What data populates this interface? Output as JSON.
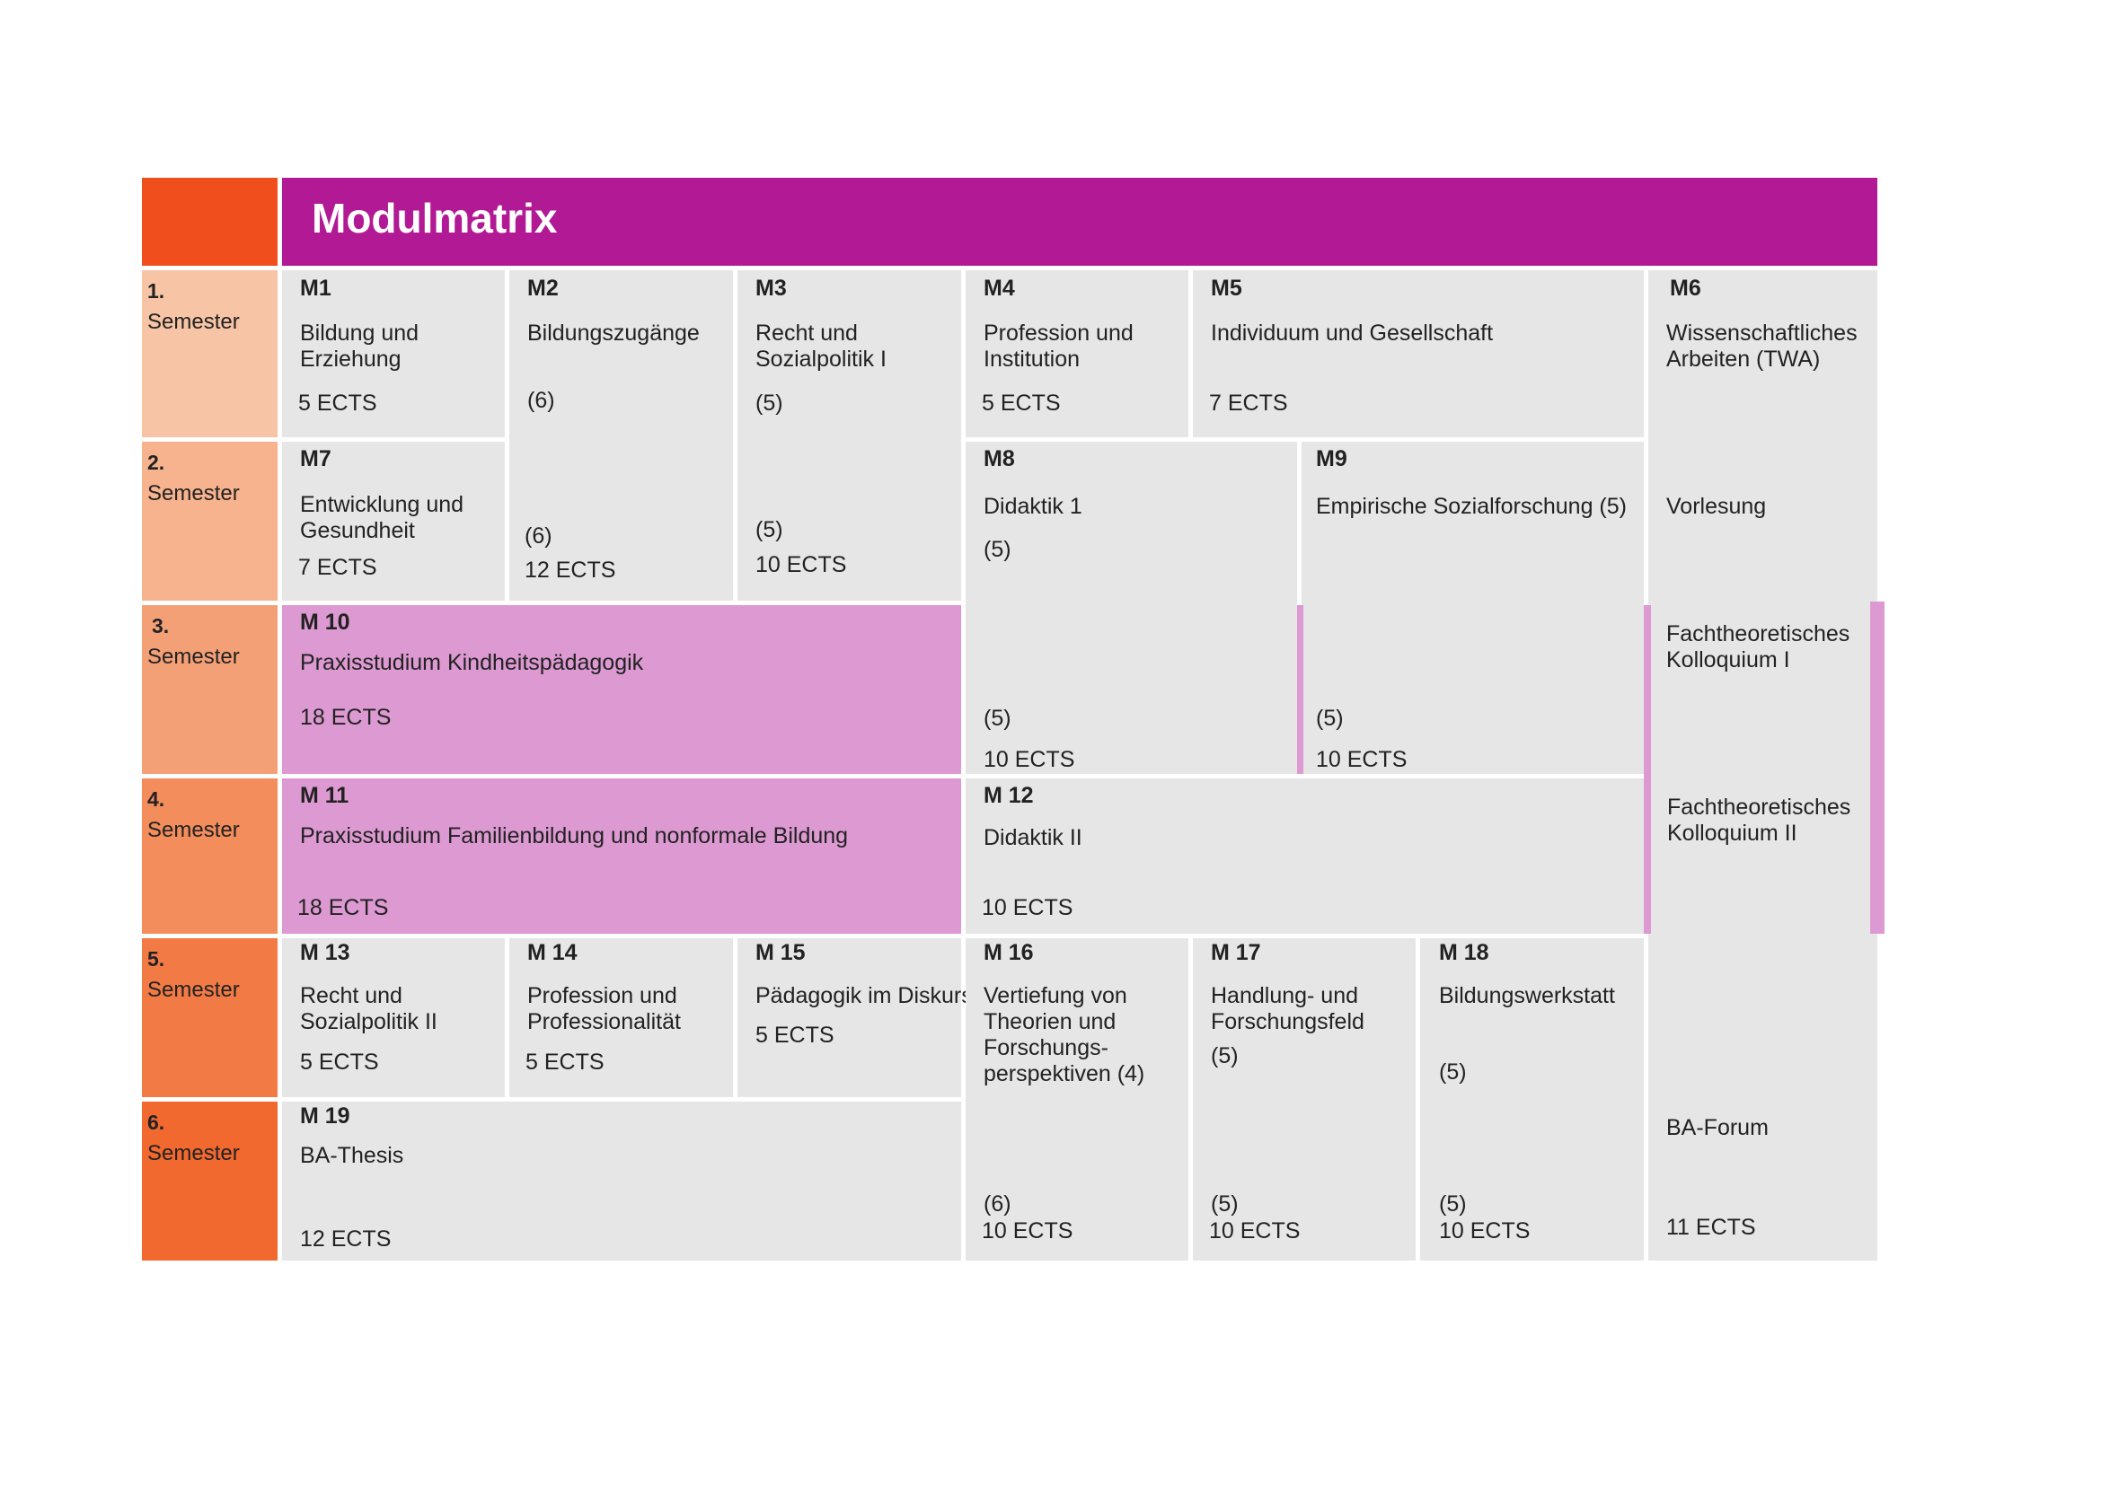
{
  "header": {
    "title": "Modulmatrix"
  },
  "semesters": [
    {
      "number": "1.",
      "label": "Semester",
      "color": "#f7c4a5"
    },
    {
      "number": "2.",
      "label": "Semester",
      "color": "#f6b38e"
    },
    {
      "number": "3.",
      "label": "Semester",
      "color": "#f4a076"
    },
    {
      "number": "4.",
      "label": "Semester",
      "color": "#f38d5c"
    },
    {
      "number": "5.",
      "label": "Semester",
      "color": "#f27a45"
    },
    {
      "number": "6.",
      "label": "Semester",
      "color": "#f1692f"
    }
  ],
  "colors": {
    "header_accent": "#f04e1c",
    "header_bar": "#b21995",
    "module_bg": "#e6e6e6",
    "praxis_bg": "#dd99d1"
  },
  "modules": {
    "m1": {
      "code": "M1",
      "title": "Bildung und\nErziehung",
      "ects": "5 ECTS"
    },
    "m2": {
      "code": "M2",
      "title": "Bildungszugänge",
      "part1": "(6)",
      "part2": "(6)",
      "ects": "12 ECTS"
    },
    "m3": {
      "code": "M3",
      "title": "Recht und\nSozialpolitik I",
      "part1": "(5)",
      "part2": "(5)",
      "ects": "10 ECTS"
    },
    "m4": {
      "code": "M4",
      "title": "Profession und\nInstitution",
      "ects": "5 ECTS"
    },
    "m5": {
      "code": "M5",
      "title": "Individuum und Gesellschaft",
      "ects": "7 ECTS"
    },
    "m6": {
      "code": "M6",
      "title": "Wissenschaftliches\nArbeiten (TWA)",
      "part_vorlesung": "Vorlesung",
      "part_kolloq1": "Fachtheoretisches\nKolloquium I",
      "part_kolloq2": "Fachtheoretisches\nKolloquium II",
      "part_forum": "BA-Forum",
      "ects": "11 ECTS"
    },
    "m7": {
      "code": "M7",
      "title": "Entwicklung und\nGesundheit",
      "ects": "7 ECTS"
    },
    "m8": {
      "code": "M8",
      "title": "Didaktik 1",
      "part1": "(5)",
      "part2": "(5)",
      "ects": "10 ECTS"
    },
    "m9": {
      "code": "M9",
      "title": "Empirische Sozialforschung (5)",
      "part2": "(5)",
      "ects": "10 ECTS"
    },
    "m10": {
      "code": "M 10",
      "title": "Praxisstudium Kindheitspädagogik",
      "ects": "18 ECTS"
    },
    "m11": {
      "code": "M 11",
      "title": "Praxisstudium Familienbildung und nonformale Bildung",
      "ects": "18 ECTS"
    },
    "m12": {
      "code": "M 12",
      "title": "Didaktik II",
      "ects": "10 ECTS"
    },
    "m13": {
      "code": "M 13",
      "title": "Recht und\nSozialpolitik II",
      "ects": "5 ECTS"
    },
    "m14": {
      "code": "M 14",
      "title": "Profession und\nProfessionalität",
      "ects": "5 ECTS"
    },
    "m15": {
      "code": "M 15",
      "title": "Pädagogik im Diskurs",
      "ects": "5 ECTS"
    },
    "m16": {
      "code": "M 16",
      "title": "Vertiefung von\nTheorien und\nForschungs-\nperspektiven (4)",
      "part2": "(6)",
      "ects": "10 ECTS"
    },
    "m17": {
      "code": "M 17",
      "title": "Handlung- und\nForschungsfeld",
      "part1": "(5)",
      "part2": "(5)",
      "ects": "10 ECTS"
    },
    "m18": {
      "code": "M 18",
      "title": "Bildungswerkstatt",
      "part1": "(5)",
      "part2": "(5)",
      "ects": "10 ECTS"
    },
    "m19": {
      "code": "M 19",
      "title": "BA-Thesis",
      "ects": "12 ECTS"
    }
  }
}
